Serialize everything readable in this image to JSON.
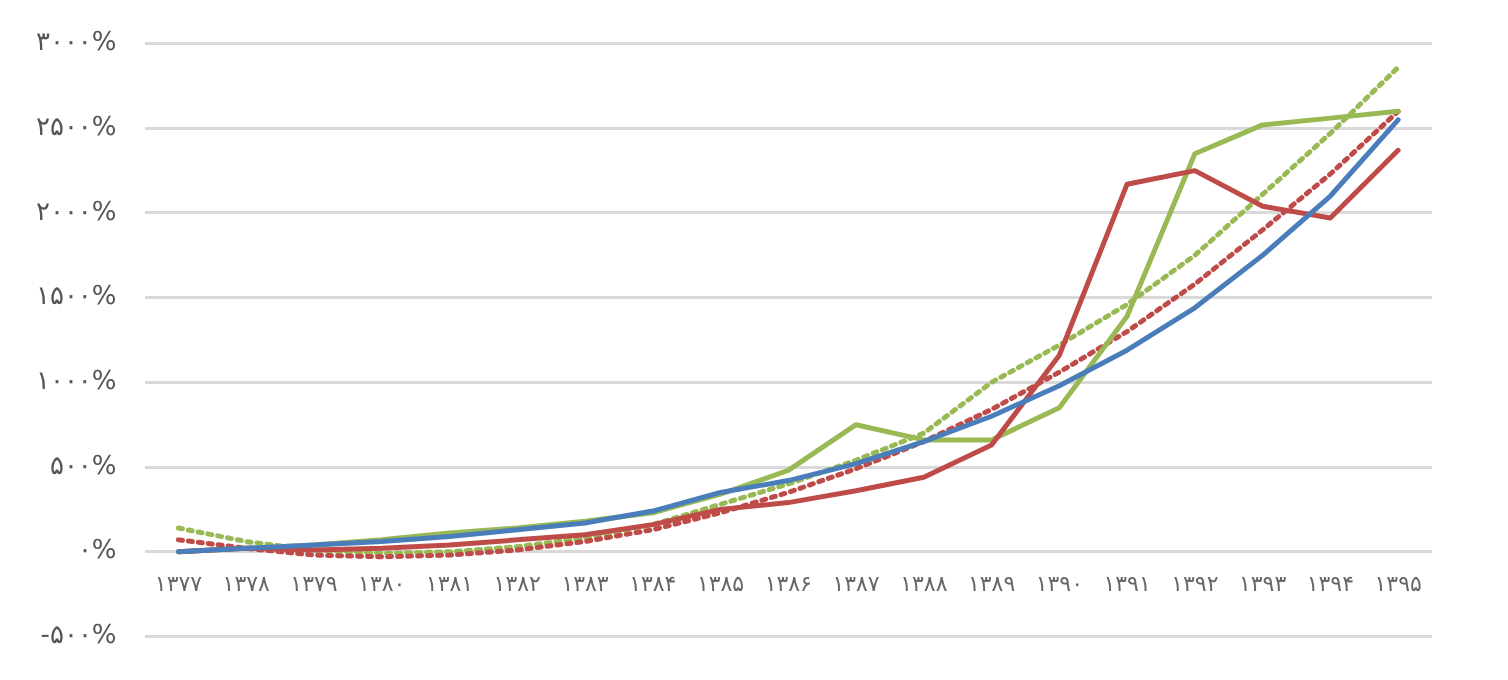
{
  "chart_data": {
    "type": "line",
    "categories": [
      "۱۳۷۷",
      "۱۳۷۸",
      "۱۳۷۹",
      "۱۳۸۰",
      "۱۳۸۱",
      "۱۳۸۲",
      "۱۳۸۳",
      "۱۳۸۴",
      "۱۳۸۵",
      "۱۳۸۶",
      "۱۳۸۷",
      "۱۳۸۸",
      "۱۳۸۹",
      "۱۳۹۰",
      "۱۳۹۱",
      "۱۳۹۲",
      "۱۳۹۳",
      "۱۳۹۴",
      "۱۳۹۵"
    ],
    "series": [
      {
        "color": "#4a7ebb",
        "values": [
          0,
          20,
          40,
          60,
          90,
          130,
          170,
          240,
          350,
          420,
          520,
          650,
          800,
          980,
          1190,
          1440,
          1750,
          2100,
          2550
        ]
      },
      {
        "color": "#be4b48",
        "values": [
          0,
          20,
          10,
          20,
          40,
          70,
          100,
          160,
          250,
          290,
          360,
          440,
          630,
          1160,
          2170,
          2250,
          2040,
          1970,
          2370
        ]
      },
      {
        "color": "#98b954",
        "values": [
          0,
          20,
          40,
          70,
          110,
          140,
          180,
          230,
          340,
          480,
          750,
          660,
          660,
          850,
          1390,
          2350,
          2520,
          2560,
          2600
        ]
      },
      {
        "color": "#be4b48",
        "line_style": "dotted",
        "values": [
          70,
          20,
          -20,
          -30,
          -20,
          10,
          60,
          130,
          230,
          350,
          490,
          650,
          840,
          1060,
          1300,
          1580,
          1900,
          2230,
          2600
        ]
      },
      {
        "color": "#98b954",
        "line_style": "dotted",
        "values": [
          140,
          60,
          10,
          -10,
          0,
          30,
          80,
          160,
          280,
          400,
          540,
          700,
          1000,
          1220,
          1460,
          1750,
          2110,
          2470,
          2860
        ]
      }
    ],
    "ylim": [
      -500,
      3000
    ],
    "yticks": [
      {
        "value": -500,
        "label": "-۵۰۰%"
      },
      {
        "value": 0,
        "label": "۰%"
      },
      {
        "value": 500,
        "label": "۵۰۰%"
      },
      {
        "value": 1000,
        "label": "۱۰۰۰%"
      },
      {
        "value": 1500,
        "label": "۱۵۰۰%"
      },
      {
        "value": 2000,
        "label": "۲۰۰۰%"
      },
      {
        "value": 2500,
        "label": "۲۵۰۰%"
      },
      {
        "value": 3000,
        "label": "۳۰۰۰%"
      }
    ],
    "grid": "y",
    "legend": false,
    "marker": "none",
    "line_style": "solid"
  }
}
